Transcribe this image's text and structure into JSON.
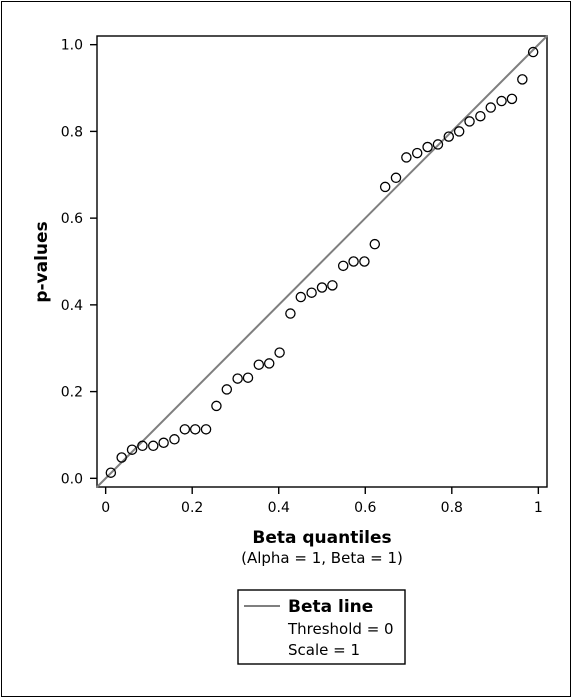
{
  "chart_data": {
    "type": "scatter",
    "xlabel": "Beta quantiles",
    "xlabel_sub": "(Alpha = 1, Beta = 1)",
    "ylabel": "p-values",
    "xlim": [
      -0.02,
      1.02
    ],
    "ylim": [
      -0.02,
      1.02
    ],
    "x_ticks": [
      0,
      0.2,
      0.4,
      0.6,
      0.8,
      1
    ],
    "x_tick_labels": [
      "0",
      "0.2",
      "0.4",
      "0.6",
      "0.8",
      "1"
    ],
    "y_ticks": [
      0.0,
      0.2,
      0.4,
      0.6,
      0.8,
      1.0
    ],
    "y_tick_labels": [
      "0.0",
      "0.2",
      "0.4",
      "0.6",
      "0.8",
      "1.0"
    ],
    "grid": false,
    "reference_line": {
      "name": "Beta line",
      "from": [
        -0.02,
        -0.02
      ],
      "to": [
        1.02,
        1.02
      ],
      "color": "#7f7f7f"
    },
    "points": {
      "x": [
        0.012,
        0.037,
        0.061,
        0.085,
        0.11,
        0.134,
        0.159,
        0.183,
        0.207,
        0.232,
        0.256,
        0.28,
        0.305,
        0.329,
        0.354,
        0.378,
        0.402,
        0.427,
        0.451,
        0.476,
        0.5,
        0.524,
        0.549,
        0.573,
        0.598,
        0.622,
        0.646,
        0.671,
        0.695,
        0.72,
        0.744,
        0.768,
        0.793,
        0.817,
        0.841,
        0.866,
        0.89,
        0.915,
        0.939,
        0.963,
        0.988
      ],
      "y": [
        0.013,
        0.048,
        0.066,
        0.075,
        0.075,
        0.082,
        0.09,
        0.113,
        0.113,
        0.113,
        0.167,
        0.205,
        0.23,
        0.232,
        0.262,
        0.265,
        0.29,
        0.38,
        0.418,
        0.428,
        0.44,
        0.445,
        0.49,
        0.5,
        0.5,
        0.54,
        0.672,
        0.693,
        0.74,
        0.75,
        0.764,
        0.77,
        0.788,
        0.8,
        0.823,
        0.835,
        0.855,
        0.87,
        0.875,
        0.92,
        0.983
      ],
      "marker": "open-circle",
      "color": "#000000"
    },
    "legend": {
      "position": "bottom-center",
      "title": "Beta line",
      "lines": [
        "Threshold = 0",
        "Scale = 1"
      ]
    }
  }
}
